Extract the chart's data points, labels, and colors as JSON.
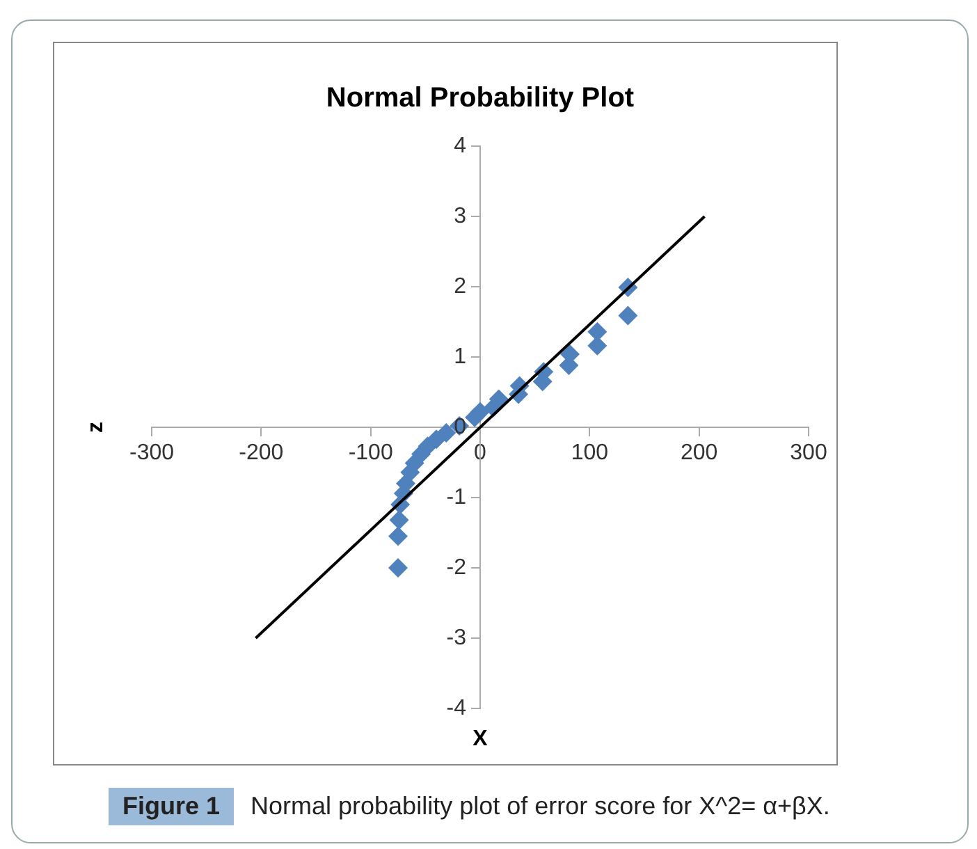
{
  "chart_data": {
    "type": "scatter",
    "title": "Normal Probability Plot",
    "xlabel": "X",
    "ylabel": "z",
    "annotations": [
      "Figure 1",
      "Normal probability plot of error score for X^2= α+βX."
    ],
    "x": [
      -75,
      -75,
      -74,
      -73,
      -70,
      -68,
      -64,
      -60,
      -54,
      -48,
      -40,
      -31,
      -19,
      -5,
      0,
      12,
      17,
      35,
      36,
      57,
      58,
      81,
      82,
      107,
      107,
      135,
      135
    ],
    "series": [
      {
        "color": "#4f81bd",
        "values": [
          -2.0,
          -1.55,
          -1.32,
          -1.1,
          -0.94,
          -0.8,
          -0.64,
          -0.51,
          -0.38,
          -0.27,
          -0.17,
          -0.08,
          0.02,
          0.14,
          0.22,
          0.28,
          0.4,
          0.47,
          0.59,
          0.65,
          0.79,
          0.88,
          1.04,
          1.16,
          1.36,
          1.59,
          1.99
        ]
      },
      {
        "type": "line",
        "x": [
          -205,
          205
        ],
        "color": "#000000",
        "values": [
          -3,
          3
        ],
        "marker": "none"
      }
    ],
    "marker": "diamond",
    "legend": false,
    "grid": false,
    "xlim": [
      -300,
      300
    ],
    "xticks": [
      -300,
      -200,
      -100,
      0,
      100,
      200,
      300
    ],
    "ylim": [
      -4,
      4
    ],
    "yticks": [
      -4,
      -3,
      -2,
      -1,
      0,
      1,
      2,
      3,
      4
    ]
  }
}
